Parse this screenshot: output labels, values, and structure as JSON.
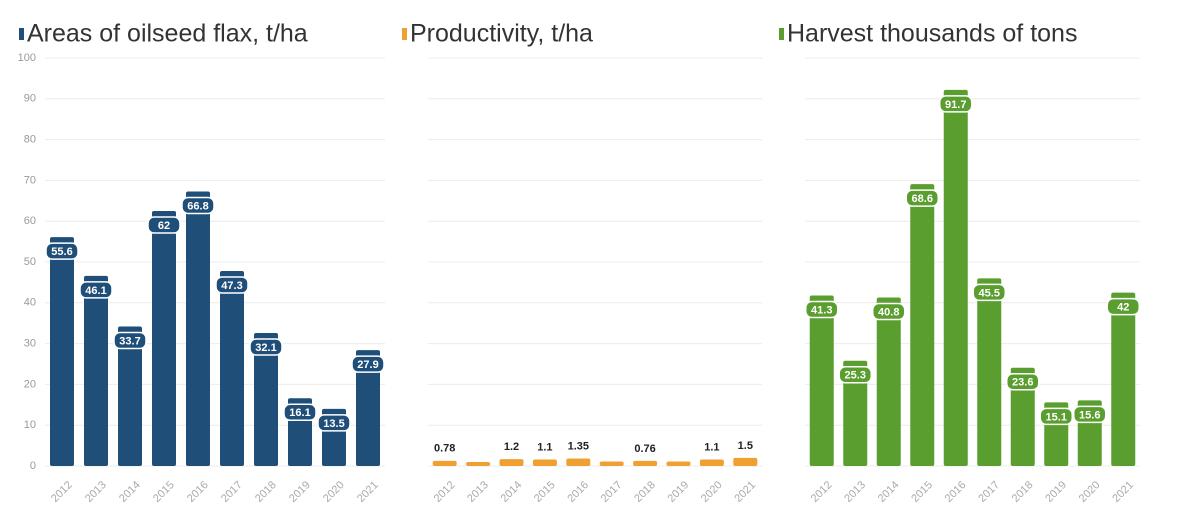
{
  "chart_data": [
    {
      "type": "bar",
      "title": "Areas of oilseed flax, t/ha",
      "color": "#1f4e79",
      "categories": [
        "2012",
        "2013",
        "2014",
        "2015",
        "2016",
        "2017",
        "2018",
        "2019",
        "2020",
        "2021"
      ],
      "values": [
        55.6,
        46.1,
        33.7,
        62,
        66.8,
        47.3,
        32.1,
        16.1,
        13.5,
        27.9
      ],
      "ylim": [
        0,
        100
      ],
      "yticks": [
        0,
        10,
        20,
        30,
        40,
        50,
        60,
        70,
        80,
        90,
        100
      ],
      "grid": true
    },
    {
      "type": "bar",
      "title": "Productivity, t/ha",
      "color": "#f0a030",
      "categories": [
        "2012",
        "2013",
        "2014",
        "2015",
        "2016",
        "2017",
        "2018",
        "2019",
        "2020",
        "2021"
      ],
      "values": [
        0.78,
        0.5,
        1.2,
        1.1,
        1.35,
        0.6,
        0.76,
        0.6,
        1.1,
        1.5
      ],
      "value_labels": [
        "0.78",
        null,
        "1.2",
        "1.1",
        "1.35",
        null,
        "0.76",
        null,
        "1.1",
        "1.5"
      ],
      "grid": true
    },
    {
      "type": "bar",
      "title": "Harvest thousands of tons",
      "color": "#5a9e2f",
      "categories": [
        "2012",
        "2013",
        "2014",
        "2015",
        "2016",
        "2017",
        "2018",
        "2019",
        "2020",
        "2021"
      ],
      "values": [
        41.3,
        25.3,
        40.8,
        68.6,
        91.7,
        45.5,
        23.6,
        15.1,
        15.6,
        42
      ],
      "grid": true
    }
  ]
}
